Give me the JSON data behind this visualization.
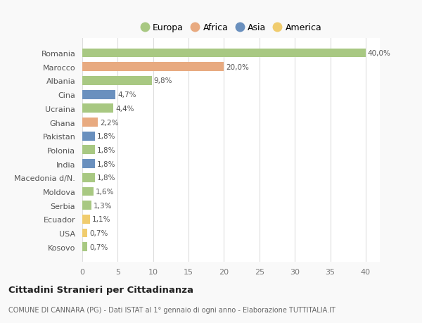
{
  "categories": [
    "Kosovo",
    "USA",
    "Ecuador",
    "Serbia",
    "Moldova",
    "Macedonia d/N.",
    "India",
    "Polonia",
    "Pakistan",
    "Ghana",
    "Ucraina",
    "Cina",
    "Albania",
    "Marocco",
    "Romania"
  ],
  "values": [
    0.7,
    0.7,
    1.1,
    1.3,
    1.6,
    1.8,
    1.8,
    1.8,
    1.8,
    2.2,
    4.4,
    4.7,
    9.8,
    20.0,
    40.0
  ],
  "continents": [
    "Europa",
    "America",
    "America",
    "Europa",
    "Europa",
    "Europa",
    "Asia",
    "Europa",
    "Asia",
    "Africa",
    "Europa",
    "Asia",
    "Europa",
    "Africa",
    "Europa"
  ],
  "colors": {
    "Europa": "#a8c882",
    "Africa": "#e8aa80",
    "Asia": "#6a90be",
    "America": "#f0cc6e"
  },
  "labels": [
    "0,7%",
    "0,7%",
    "1,1%",
    "1,3%",
    "1,6%",
    "1,8%",
    "1,8%",
    "1,8%",
    "1,8%",
    "2,2%",
    "4,4%",
    "4,7%",
    "9,8%",
    "20,0%",
    "40,0%"
  ],
  "title": "Cittadini Stranieri per Cittadinanza",
  "subtitle": "COMUNE DI CANNARA (PG) - Dati ISTAT al 1° gennaio di ogni anno - Elaborazione TUTTITALIA.IT",
  "xlim": [
    0,
    42
  ],
  "xticks": [
    0,
    5,
    10,
    15,
    20,
    25,
    30,
    35,
    40
  ],
  "background_color": "#f9f9f9",
  "plot_background": "#ffffff",
  "legend_entries": [
    "Europa",
    "Africa",
    "Asia",
    "America"
  ]
}
